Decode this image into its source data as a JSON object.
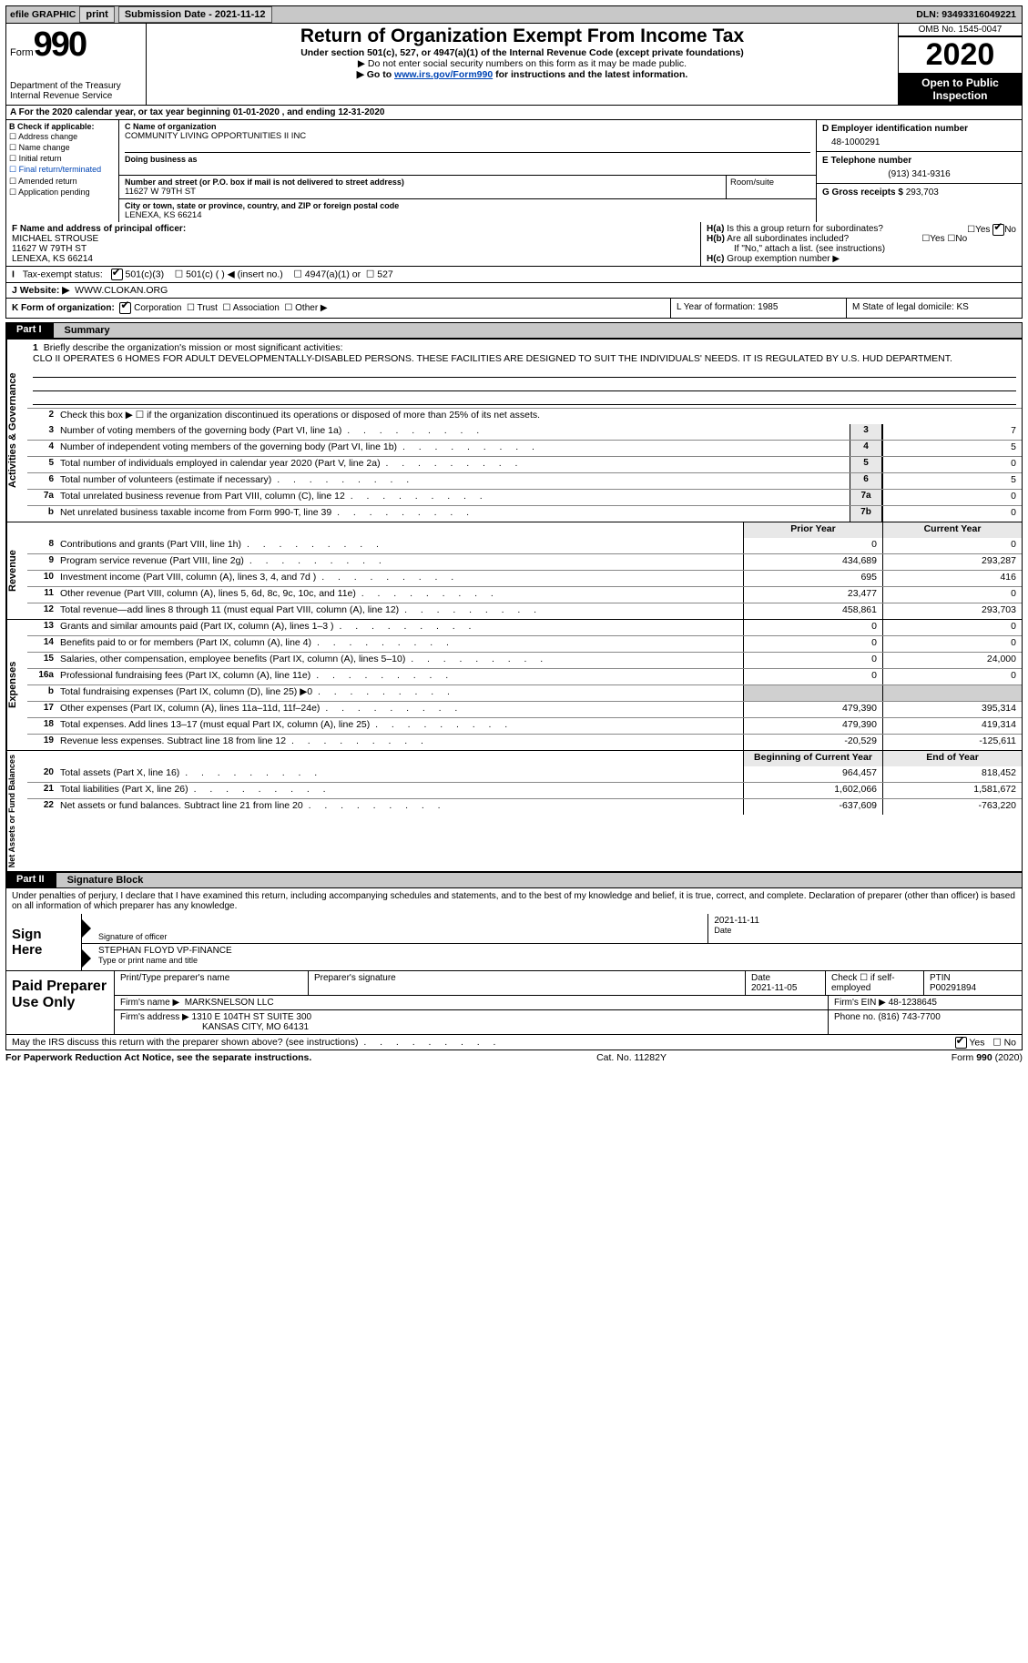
{
  "topbar": {
    "efile_label": "efile GRAPHIC",
    "print_btn": "print",
    "submission_label": "Submission Date - 2021-11-12",
    "dln_label": "DLN: 93493316049221"
  },
  "header": {
    "form_word": "Form",
    "form_num": "990",
    "dept1": "Department of the Treasury",
    "dept2": "Internal Revenue Service",
    "title": "Return of Organization Exempt From Income Tax",
    "sub1": "Under section 501(c), 527, or 4947(a)(1) of the Internal Revenue Code (except private foundations)",
    "sub2": "▶ Do not enter social security numbers on this form as it may be made public.",
    "sub3_pre": "▶ Go to ",
    "sub3_link": "www.irs.gov/Form990",
    "sub3_post": " for instructions and the latest information.",
    "omb": "OMB No. 1545-0047",
    "year": "2020",
    "open1": "Open to Public",
    "open2": "Inspection"
  },
  "line_a": "A For the 2020 calendar year, or tax year beginning 01-01-2020   , and ending 12-31-2020",
  "col_b": {
    "hdr": "B Check if applicable:",
    "c1": "Address change",
    "c2": "Name change",
    "c3": "Initial return",
    "c4": "Final return/terminated",
    "c5": "Amended return",
    "c6": "Application pending"
  },
  "col_c": {
    "name_hdr": "C Name of organization",
    "name": "COMMUNITY LIVING OPPORTUNITIES II INC",
    "dba_hdr": "Doing business as",
    "addr_hdr": "Number and street (or P.O. box if mail is not delivered to street address)",
    "addr": "11627 W 79TH ST",
    "suite_hdr": "Room/suite",
    "city_hdr": "City or town, state or province, country, and ZIP or foreign postal code",
    "city": "LENEXA, KS  66214"
  },
  "col_d": {
    "ein_hdr": "D Employer identification number",
    "ein": "48-1000291",
    "tel_hdr": "E Telephone number",
    "tel": "(913) 341-9316",
    "gross_hdr": "G Gross receipts $",
    "gross": "293,703"
  },
  "row_f": {
    "hdr": "F Name and address of principal officer:",
    "l1": "MICHAEL STROUSE",
    "l2": "11627 W 79TH ST",
    "l3": "LENEXA, KS  66214"
  },
  "row_h": {
    "ha_q": "Is this a group return for subordinates?",
    "hb_q": "Are all subordinates included?",
    "h_note": "If \"No,\" attach a list. (see instructions)",
    "hc": "Group exemption number ▶"
  },
  "tax_status": {
    "label": "Tax-exempt status:",
    "o1": "501(c)(3)",
    "o2": "501(c) (   ) ◀ (insert no.)",
    "o3": "4947(a)(1) or",
    "o4": "527"
  },
  "website": {
    "label": "J   Website: ▶",
    "value": "WWW.CLOKAN.ORG"
  },
  "row_k": {
    "k": "K Form of organization:",
    "corp": "Corporation",
    "trust": "Trust",
    "assoc": "Association",
    "other": "Other ▶",
    "l": "L Year of formation: 1985",
    "m": "M State of legal domicile: KS"
  },
  "part1": {
    "tab": "Part I",
    "title": "Summary"
  },
  "governance": {
    "side": "Activities & Governance",
    "q1": "Briefly describe the organization's mission or most significant activities:",
    "mission": "CLO II OPERATES 6 HOMES FOR ADULT DEVELOPMENTALLY-DISABLED PERSONS. THESE FACILITIES ARE DESIGNED TO SUIT THE INDIVIDUALS' NEEDS. IT IS REGULATED BY U.S. HUD DEPARTMENT.",
    "q2": "Check this box ▶ ☐  if the organization discontinued its operations or disposed of more than 25% of its net assets.",
    "rows": [
      {
        "n": "3",
        "d": "Number of voting members of the governing body (Part VI, line 1a)",
        "b": "3",
        "v": "7"
      },
      {
        "n": "4",
        "d": "Number of independent voting members of the governing body (Part VI, line 1b)",
        "b": "4",
        "v": "5"
      },
      {
        "n": "5",
        "d": "Total number of individuals employed in calendar year 2020 (Part V, line 2a)",
        "b": "5",
        "v": "0"
      },
      {
        "n": "6",
        "d": "Total number of volunteers (estimate if necessary)",
        "b": "6",
        "v": "5"
      },
      {
        "n": "7a",
        "d": "Total unrelated business revenue from Part VIII, column (C), line 12",
        "b": "7a",
        "v": "0"
      },
      {
        "n": "b",
        "d": "Net unrelated business taxable income from Form 990-T, line 39",
        "b": "7b",
        "v": "0"
      }
    ]
  },
  "cols": {
    "prior": "Prior Year",
    "current": "Current Year",
    "boy": "Beginning of Current Year",
    "eoy": "End of Year"
  },
  "revenue": {
    "side": "Revenue",
    "rows": [
      {
        "n": "8",
        "d": "Contributions and grants (Part VIII, line 1h)",
        "p": "0",
        "c": "0"
      },
      {
        "n": "9",
        "d": "Program service revenue (Part VIII, line 2g)",
        "p": "434,689",
        "c": "293,287"
      },
      {
        "n": "10",
        "d": "Investment income (Part VIII, column (A), lines 3, 4, and 7d )",
        "p": "695",
        "c": "416"
      },
      {
        "n": "11",
        "d": "Other revenue (Part VIII, column (A), lines 5, 6d, 8c, 9c, 10c, and 11e)",
        "p": "23,477",
        "c": "0"
      },
      {
        "n": "12",
        "d": "Total revenue—add lines 8 through 11 (must equal Part VIII, column (A), line 12)",
        "p": "458,861",
        "c": "293,703"
      }
    ]
  },
  "expenses": {
    "side": "Expenses",
    "rows": [
      {
        "n": "13",
        "d": "Grants and similar amounts paid (Part IX, column (A), lines 1–3 )",
        "p": "0",
        "c": "0"
      },
      {
        "n": "14",
        "d": "Benefits paid to or for members (Part IX, column (A), line 4)",
        "p": "0",
        "c": "0"
      },
      {
        "n": "15",
        "d": "Salaries, other compensation, employee benefits (Part IX, column (A), lines 5–10)",
        "p": "0",
        "c": "24,000"
      },
      {
        "n": "16a",
        "d": "Professional fundraising fees (Part IX, column (A), line 11e)",
        "p": "0",
        "c": "0"
      },
      {
        "n": "b",
        "d": "Total fundraising expenses (Part IX, column (D), line 25) ▶0",
        "p": "",
        "c": "",
        "shade": true
      },
      {
        "n": "17",
        "d": "Other expenses (Part IX, column (A), lines 11a–11d, 11f–24e)",
        "p": "479,390",
        "c": "395,314"
      },
      {
        "n": "18",
        "d": "Total expenses. Add lines 13–17 (must equal Part IX, column (A), line 25)",
        "p": "479,390",
        "c": "419,314"
      },
      {
        "n": "19",
        "d": "Revenue less expenses. Subtract line 18 from line 12",
        "p": "-20,529",
        "c": "-125,611"
      }
    ]
  },
  "netassets": {
    "side": "Net Assets or Fund Balances",
    "rows": [
      {
        "n": "20",
        "d": "Total assets (Part X, line 16)",
        "p": "964,457",
        "c": "818,452"
      },
      {
        "n": "21",
        "d": "Total liabilities (Part X, line 26)",
        "p": "1,602,066",
        "c": "1,581,672"
      },
      {
        "n": "22",
        "d": "Net assets or fund balances. Subtract line 21 from line 20",
        "p": "-637,609",
        "c": "-763,220"
      }
    ]
  },
  "part2": {
    "tab": "Part II",
    "title": "Signature Block"
  },
  "penalty": "Under penalties of perjury, I declare that I have examined this return, including accompanying schedules and statements, and to the best of my knowledge and belief, it is true, correct, and complete. Declaration of preparer (other than officer) is based on all information of which preparer has any knowledge.",
  "sign": {
    "here": "Sign Here",
    "sig_label": "Signature of officer",
    "date_label": "Date",
    "date": "2021-11-11",
    "name": "STEPHAN FLOYD  VP-FINANCE",
    "name_label": "Type or print name and title"
  },
  "paid": {
    "here": "Paid Preparer Use Only",
    "h1": "Print/Type preparer's name",
    "h2": "Preparer's signature",
    "h3": "Date",
    "date": "2021-11-05",
    "h4": "Check ☐ if self-employed",
    "h5": "PTIN",
    "ptin": "P00291894",
    "firm_label": "Firm's name    ▶",
    "firm": "MARKSNELSON LLC",
    "ein_label": "Firm's EIN ▶",
    "ein": "48-1238645",
    "addr_label": "Firm's address ▶",
    "addr1": "1310 E 104TH ST SUITE 300",
    "addr2": "KANSAS CITY, MO  64131",
    "phone_label": "Phone no.",
    "phone": "(816) 743-7700"
  },
  "discuss": "May the IRS discuss this return with the preparer shown above? (see instructions)",
  "footer": {
    "left": "For Paperwork Reduction Act Notice, see the separate instructions.",
    "mid": "Cat. No. 11282Y",
    "right": "Form 990 (2020)"
  }
}
